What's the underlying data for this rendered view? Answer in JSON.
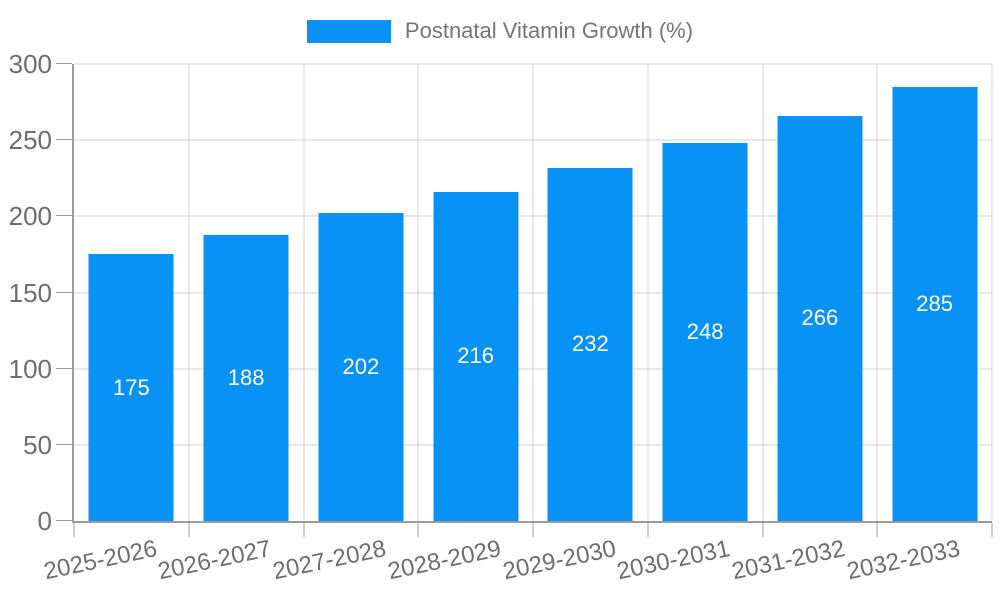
{
  "chart_data": {
    "type": "bar",
    "title": "Postnatal Vitamin Growth (%)",
    "categories": [
      "2025-2026",
      "2026-2027",
      "2027-2028",
      "2028-2029",
      "2029-2030",
      "2030-2031",
      "2031-2032",
      "2032-2033"
    ],
    "values": [
      175,
      188,
      202,
      216,
      232,
      248,
      266,
      285
    ],
    "xlabel": "",
    "ylabel": "",
    "ylim": [
      0,
      300
    ],
    "yticks": [
      0,
      50,
      100,
      150,
      200,
      250,
      300
    ],
    "grid": true,
    "legend_position": "top-center",
    "bar_color": "#0892f5",
    "value_label_color": "#ffffff",
    "axis_color": "#9b9b9b",
    "grid_color": "#d0d0d0",
    "tick_label_color": "#6e6e6e",
    "legend_text_color": "#757575",
    "background_color": "#ffffff"
  }
}
